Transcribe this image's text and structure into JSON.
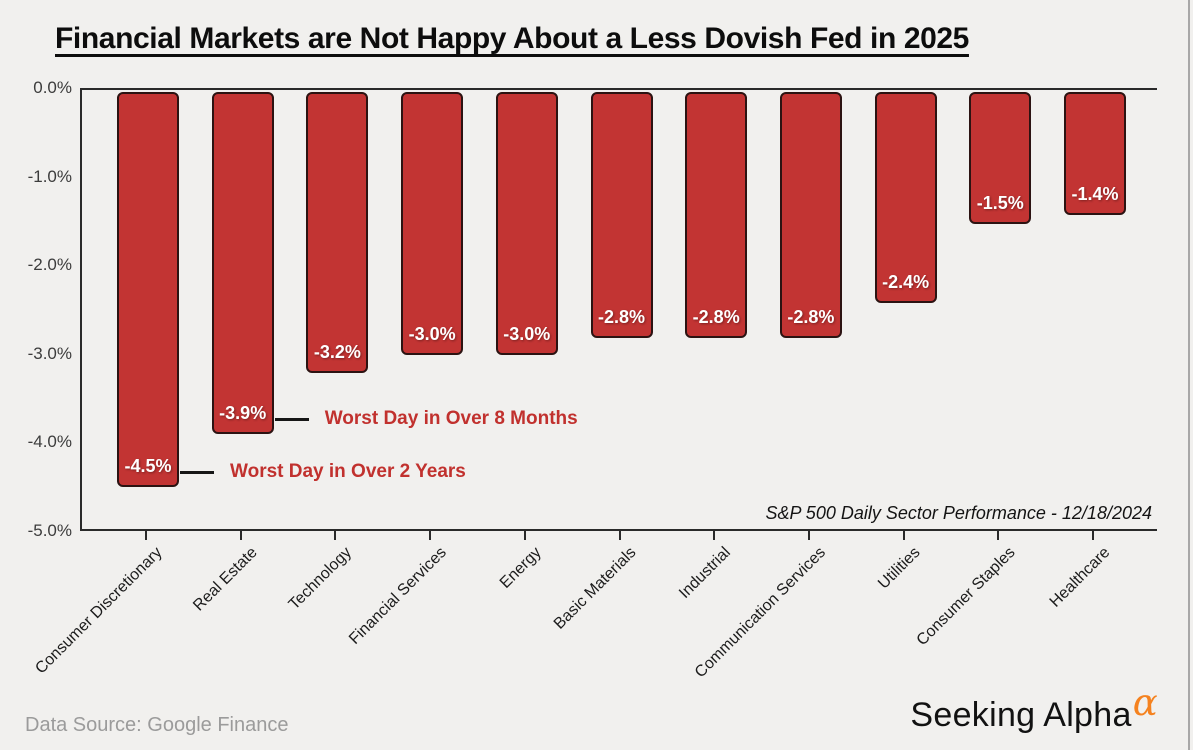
{
  "page": {
    "background": "#f1f0ee"
  },
  "title": "Financial Markets are Not Happy About a Less Dovish Fed in 2025",
  "chart_data": {
    "type": "bar",
    "title": "Financial Markets are Not Happy About a Less Dovish Fed in 2025",
    "categories": [
      "Consumer Discretionary",
      "Real Estate",
      "Technology",
      "Financial Services",
      "Energy",
      "Basic Materials",
      "Industrial",
      "Communication Services",
      "Utilities",
      "Consumer Staples",
      "Healthcare"
    ],
    "values": [
      -4.5,
      -3.9,
      -3.2,
      -3.0,
      -3.0,
      -2.8,
      -2.8,
      -2.8,
      -2.4,
      -1.5,
      -1.4
    ],
    "value_labels": [
      "-4.5%",
      "-3.9%",
      "-3.2%",
      "-3.0%",
      "-3.0%",
      "-2.8%",
      "-2.8%",
      "-2.8%",
      "-2.4%",
      "-1.5%",
      "-1.4%"
    ],
    "xlabel": "",
    "ylabel": "",
    "ylim": [
      -5.0,
      0.0
    ],
    "ytick_labels": [
      "0.0%",
      "-1.0%",
      "-2.0%",
      "-3.0%",
      "-4.0%",
      "-5.0%"
    ],
    "grid": false,
    "legend": false,
    "bar_color": "#c23433",
    "bar_border_color": "#2c1312",
    "value_label_color": "#ffffff",
    "annotation_color": "#c1312e",
    "annotations": [
      {
        "text": "Worst Day in Over 2 Years",
        "bar_index": 0
      },
      {
        "text": "Worst Day in Over 8 Months",
        "bar_index": 1
      }
    ],
    "note": "S&P 500 Daily Sector Performance - 12/18/2024"
  },
  "footer": {
    "source": "Data Source: Google Finance",
    "brand": "Seeking Alpha",
    "brand_symbol": "α",
    "brand_symbol_color": "#f5821f"
  }
}
